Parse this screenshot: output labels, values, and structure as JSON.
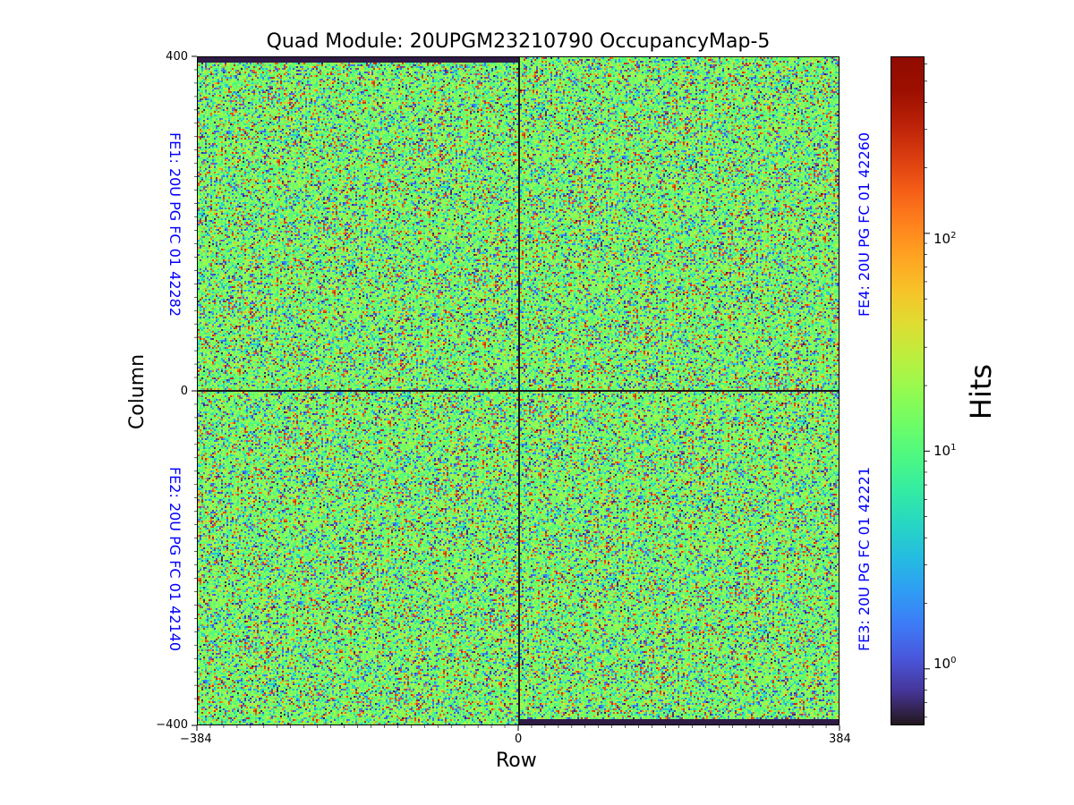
{
  "chart_data": {
    "type": "heatmap",
    "title": "Quad Module: 20UPGM23210790 OccupancyMap-5",
    "xlabel": "Row",
    "ylabel": "Column",
    "xlim": [
      -384,
      384
    ],
    "ylim": [
      -400,
      400
    ],
    "x_ticks": [
      "−384",
      "0",
      "384"
    ],
    "y_ticks": [
      "400",
      "0",
      "−400"
    ],
    "colorbar": {
      "label": "Hits",
      "scale": "log",
      "range": [
        0.55,
        650
      ],
      "colormap": "turbo",
      "ticks": [
        {
          "value": 1,
          "base": "10",
          "exp": "0"
        },
        {
          "value": 10,
          "base": "10",
          "exp": "1"
        },
        {
          "value": 100,
          "base": "10",
          "exp": "2"
        }
      ]
    },
    "typical_hits": 15,
    "quadrants": [
      {
        "name": "FE1",
        "label": "FE1: 20U PG FC 01 42282",
        "position": "top-left"
      },
      {
        "name": "FE2",
        "label": "FE2: 20U PG FC 01 42140",
        "position": "bottom-left"
      },
      {
        "name": "FE3",
        "label": "FE3: 20U PG FC 01 42221",
        "position": "bottom-right"
      },
      {
        "name": "FE4",
        "label": "FE4: 20U PG FC 01 42260",
        "position": "top-right"
      }
    ]
  }
}
